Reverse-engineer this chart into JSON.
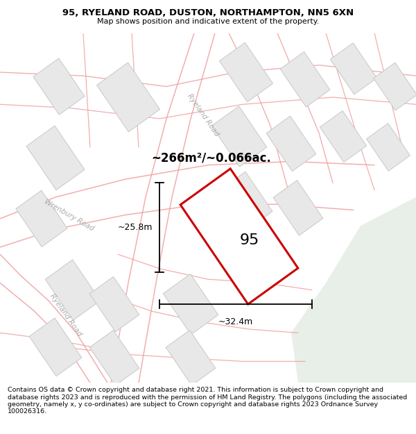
{
  "title_line1": "95, RYELAND ROAD, DUSTON, NORTHAMPTON, NN5 6XN",
  "title_line2": "Map shows position and indicative extent of the property.",
  "footer": "Contains OS data © Crown copyright and database right 2021. This information is subject to Crown copyright and database rights 2023 and is reproduced with the permission of HM Land Registry. The polygons (including the associated geometry, namely x, y co-ordinates) are subject to Crown copyright and database rights 2023 Ordnance Survey 100026316.",
  "area_label": "~266m²/~0.066ac.",
  "property_number": "95",
  "dim_width": "~32.4m",
  "dim_height": "~25.8m",
  "road_label_ryeland_top": "Ryeland Road",
  "road_label_wrenbury": "Wrenbury Road",
  "road_label_ryeland_left": "Ryeland Road",
  "map_bg": "#ffffff",
  "property_fill": "#ffffff",
  "property_edge": "#cc0000",
  "road_color": "#f0a0a0",
  "building_fill": "#e8e8e8",
  "building_edge": "#c8c8c8",
  "green_fill": "#e8efe8",
  "title_fontsize": 9.5,
  "footer_fontsize": 6.8,
  "road_label_color": "#aaaaaa",
  "road_label_size": 7.5
}
